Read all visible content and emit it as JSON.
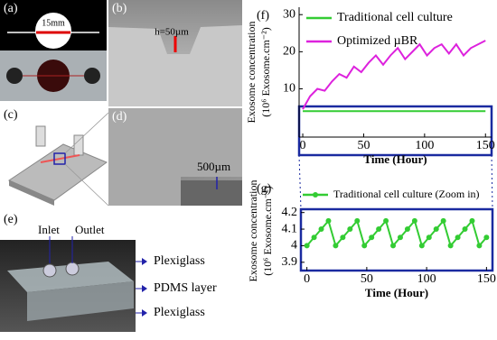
{
  "panels": {
    "a": "(a)",
    "b": "(b)",
    "c": "(c)",
    "d": "(d)",
    "e": "(e)",
    "scale_a": "15mm",
    "height_b": "h=50µm",
    "scale_d": "500µm",
    "inlet": "Inlet",
    "outlet": "Outlet",
    "layer_top": "Plexiglass",
    "layer_mid": "PDMS layer",
    "layer_bottom": "Plexiglass"
  },
  "chart_data": [
    {
      "type": "line",
      "panel": "(f)",
      "xlabel": "Time (Hour)",
      "ylabel": [
        "Exosome concentration",
        "(10⁶ Exosome.cm⁻²)"
      ],
      "x": [
        0,
        6,
        12,
        18,
        24,
        30,
        36,
        42,
        48,
        54,
        60,
        66,
        72,
        78,
        84,
        90,
        96,
        102,
        108,
        114,
        120,
        126,
        132,
        138,
        144,
        150
      ],
      "series": [
        {
          "name": "Traditional cell culture",
          "color": "#33cc33",
          "values": [
            4,
            4,
            4,
            4,
            4,
            4,
            4,
            4,
            4,
            4,
            4,
            4,
            4,
            4,
            4,
            4,
            4,
            4,
            4,
            4,
            4,
            4,
            4,
            4,
            4,
            4
          ]
        },
        {
          "name": "Optimized µBR",
          "color": "#dd22dd",
          "values": [
            4.5,
            8,
            10,
            9.5,
            12,
            14,
            13,
            16,
            14.5,
            17,
            19,
            16.5,
            19,
            21,
            18,
            20,
            22,
            19,
            21,
            22,
            19.5,
            22,
            19,
            21,
            22,
            23
          ]
        }
      ],
      "xlim": [
        -3,
        155
      ],
      "ylim": [
        -3,
        32
      ],
      "xticks": [
        0,
        50,
        100,
        150
      ],
      "yticks": [
        10,
        20,
        30
      ],
      "legend": "upper-left"
    },
    {
      "type": "line",
      "panel": "(g)",
      "xlabel": "Time (Hour)",
      "ylabel": [
        "Exosome concentration",
        "(10⁶ Exosome.cm⁻²)"
      ],
      "x": [
        0,
        6,
        12,
        18,
        24,
        30,
        36,
        42,
        48,
        54,
        60,
        66,
        72,
        78,
        84,
        90,
        96,
        102,
        108,
        114,
        120,
        126,
        132,
        138,
        144,
        150
      ],
      "series": [
        {
          "name": "Traditional cell culture (Zoom in)",
          "color": "#33cc33",
          "values": [
            4.0,
            4.05,
            4.1,
            4.15,
            4.0,
            4.05,
            4.1,
            4.15,
            4.0,
            4.05,
            4.1,
            4.15,
            4.0,
            4.05,
            4.1,
            4.15,
            4.0,
            4.05,
            4.1,
            4.15,
            4.0,
            4.05,
            4.1,
            4.15,
            4.0,
            4.05
          ],
          "markers": true
        }
      ],
      "xlim": [
        -5,
        155
      ],
      "ylim": [
        3.85,
        4.22
      ],
      "xticks": [
        0,
        50,
        100,
        150
      ],
      "yticks": [
        3.9,
        4,
        4.1,
        4.2
      ],
      "legend": "top"
    }
  ]
}
